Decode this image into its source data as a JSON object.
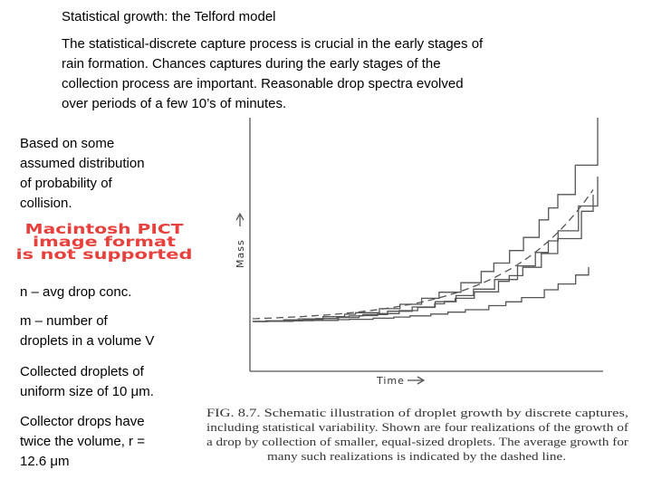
{
  "title": "Statistical growth: the Telford model",
  "intro": [
    "The statistical-discrete capture process is crucial in the early stages of",
    "rain formation.  Chances captures during the early stages of the",
    "collection process are important.  Reasonable drop spectra evolved",
    "over periods of a few 10’s of minutes."
  ],
  "notes": [
    [
      "Based on some",
      "assumed distribution",
      "of probability of",
      "collision."
    ],
    [
      "n – avg drop conc."
    ],
    [
      "m – number of",
      "droplets in a volume V"
    ],
    [
      "Collected droplets of",
      "uniform size of 10 μm."
    ],
    [
      "Collector drops have",
      "twice the volume, r =",
      "12.6 μm"
    ]
  ],
  "pict_warning": [
    "Macintosh PICT",
    "image format",
    "is not supported"
  ],
  "figure": {
    "y_label": "Mass",
    "x_label": "Time",
    "caption": [
      "FIG. 8.7. Schematic illustration of droplet growth by discrete captures,",
      "including statistical variability. Shown are four realizations of the growth of",
      "a drop by collection of smaller, equal-sized droplets. The average growth for",
      "many such realizations is indicated by the dashed line."
    ]
  }
}
